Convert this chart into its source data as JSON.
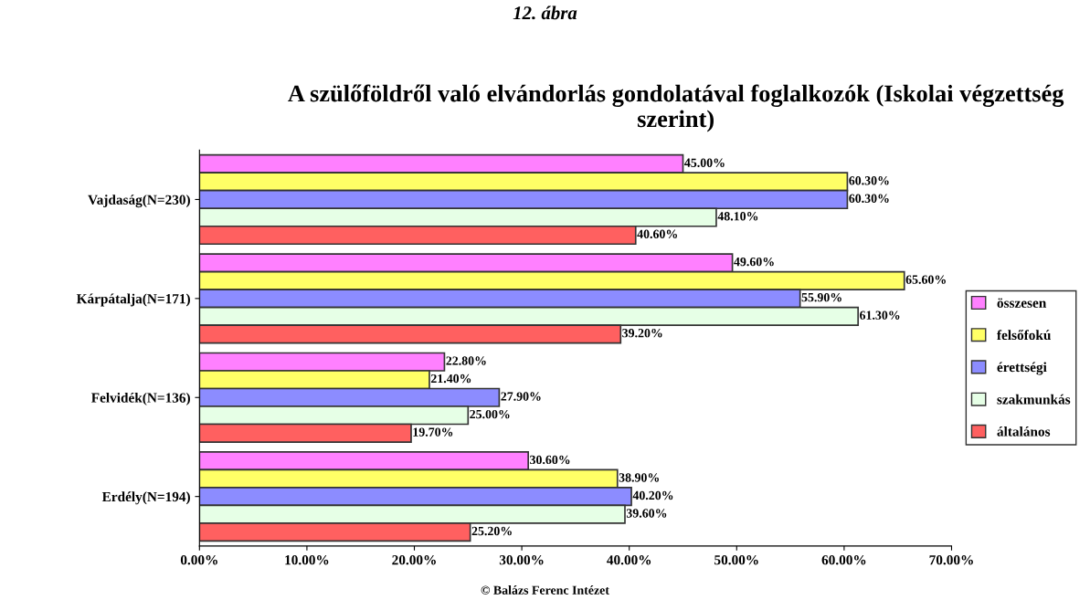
{
  "chart_data": {
    "type": "bar",
    "orientation": "horizontal",
    "title": "A szülőföldről való elvándorlás gondolatával foglalkozók (Iskolai végzettség szerint)",
    "annotations": [
      "12. ábra",
      "© Balázs Ferenc Intézet"
    ],
    "categories": [
      "Vajdaság(N=230)",
      "Kárpátalja(N=171)",
      "Felvidék(N=136)",
      "Erdély(N=194)"
    ],
    "series": [
      {
        "name": "összesen",
        "color": "#ff80ff",
        "values": [
          45.0,
          49.6,
          22.8,
          30.6
        ],
        "value_labels": [
          "45.00%",
          "49.60%",
          "22.80%",
          "30.60%"
        ]
      },
      {
        "name": "felsőfokú",
        "color": "#ffff66",
        "values": [
          60.3,
          65.6,
          21.4,
          38.9
        ],
        "value_labels": [
          "60.30%",
          "65.60%",
          "21.40%",
          "38.90%"
        ]
      },
      {
        "name": "érettségi",
        "color": "#8c8cff",
        "values": [
          60.3,
          55.9,
          27.9,
          40.2
        ],
        "value_labels": [
          "60.30%",
          "55.90%",
          "27.90%",
          "40.20%"
        ]
      },
      {
        "name": "szakmunkás",
        "color": "#e6ffe6",
        "values": [
          48.1,
          61.3,
          25.0,
          39.6
        ],
        "value_labels": [
          "48.10%",
          "61.30%",
          "25.00%",
          "39.60%"
        ]
      },
      {
        "name": "általános",
        "color": "#ff6060",
        "values": [
          40.6,
          39.2,
          19.7,
          25.2
        ],
        "value_labels": [
          "40.60%",
          "39.20%",
          "19.70%",
          "25.20%"
        ]
      }
    ],
    "xlim": [
      0,
      70
    ],
    "xticks": [
      {
        "value": 0,
        "label": "0.00%"
      },
      {
        "value": 10,
        "label": "10.00%"
      },
      {
        "value": 20,
        "label": "20.00%"
      },
      {
        "value": 30,
        "label": "30.00%"
      },
      {
        "value": 40,
        "label": "40.00%"
      },
      {
        "value": 50,
        "label": "50.00%"
      },
      {
        "value": 60,
        "label": "60.00%"
      },
      {
        "value": 70,
        "label": "70.00%"
      }
    ],
    "grid": false,
    "legend": "right"
  }
}
